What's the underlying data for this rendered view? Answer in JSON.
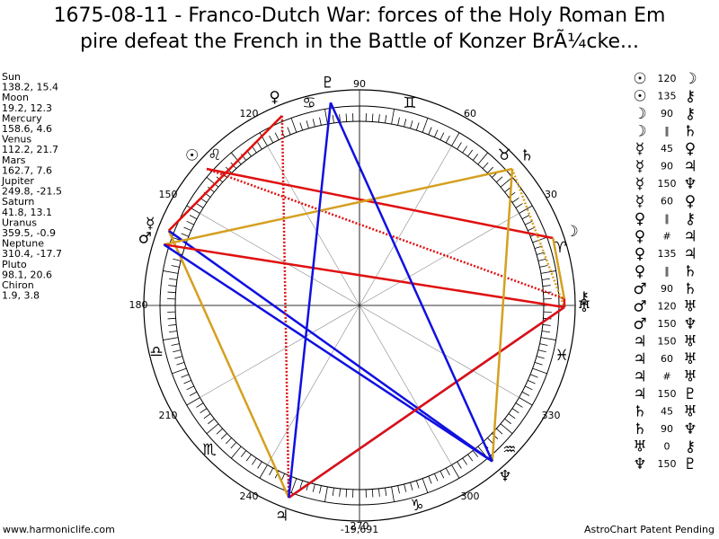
{
  "title": [
    "1675-08-11 - Franco-Dutch War: forces of the Holy Roman Em",
    "pire defeat the French in the Battle of Konzer BrÃ¼cke..."
  ],
  "planets": [
    {
      "name": "Sun",
      "position": "138.2, 15.4",
      "glyph": "☉"
    },
    {
      "name": "Moon",
      "position": "19.2, 12.3",
      "glyph": "☽"
    },
    {
      "name": "Mercury",
      "position": "158.6, 4.6",
      "glyph": "☿"
    },
    {
      "name": "Venus",
      "position": "112.2, 21.7",
      "glyph": "♀"
    },
    {
      "name": "Mars",
      "position": "162.7, 7.6",
      "glyph": "♂"
    },
    {
      "name": "Jupiter",
      "position": "249.8, -21.5",
      "glyph": "♃"
    },
    {
      "name": "Saturn",
      "position": "41.8, 13.1",
      "glyph": "♄"
    },
    {
      "name": "Uranus",
      "position": "359.5, -0.9",
      "glyph": "♅"
    },
    {
      "name": "Neptune",
      "position": "310.4, -17.7",
      "glyph": "♆"
    },
    {
      "name": "Pluto",
      "position": "98.1, 20.6",
      "glyph": "♇"
    },
    {
      "name": "Chiron",
      "position": "1.9, 3.8",
      "glyph": "⚷"
    }
  ],
  "aspects": [
    {
      "from": "☉",
      "aspect": "120",
      "to": "☽"
    },
    {
      "from": "☉",
      "aspect": "135",
      "to": "⚷"
    },
    {
      "from": "☽",
      "aspect": "90",
      "to": "⚷"
    },
    {
      "from": "☽",
      "aspect": "∥",
      "to": "♄"
    },
    {
      "from": "☿",
      "aspect": "45",
      "to": "♀"
    },
    {
      "from": "☿",
      "aspect": "90",
      "to": "♃"
    },
    {
      "from": "☿",
      "aspect": "150",
      "to": "♆"
    },
    {
      "from": "☿",
      "aspect": "60",
      "to": "♀"
    },
    {
      "from": "♀",
      "aspect": "∥",
      "to": "⚷"
    },
    {
      "from": "♀",
      "aspect": "#",
      "to": "♃"
    },
    {
      "from": "♀",
      "aspect": "135",
      "to": "♃"
    },
    {
      "from": "♀",
      "aspect": "∥",
      "to": "♄"
    },
    {
      "from": "♂",
      "aspect": "90",
      "to": "♄"
    },
    {
      "from": "♂",
      "aspect": "120",
      "to": "♅"
    },
    {
      "from": "♂",
      "aspect": "150",
      "to": "♆"
    },
    {
      "from": "♃",
      "aspect": "150",
      "to": "♅"
    },
    {
      "from": "♃",
      "aspect": "60",
      "to": "♅"
    },
    {
      "from": "♃",
      "aspect": "#",
      "to": "♅"
    },
    {
      "from": "♃",
      "aspect": "150",
      "to": "♇"
    },
    {
      "from": "♄",
      "aspect": "45",
      "to": "♅"
    },
    {
      "from": "♄",
      "aspect": "90",
      "to": "♆"
    },
    {
      "from": "♅",
      "aspect": "0",
      "to": "⚷"
    },
    {
      "from": "♆",
      "aspect": "150",
      "to": "♇"
    }
  ],
  "wheel": {
    "degree_labels": [
      30,
      60,
      90,
      120,
      150,
      180,
      210,
      240,
      270,
      300,
      330
    ],
    "signs": [
      "♈",
      "♉",
      "♊",
      "♋",
      "♌",
      "♎",
      "♏",
      "♑",
      "♒",
      "♓"
    ]
  },
  "footer": {
    "left": "www.harmoniclife.com",
    "center": "-19,691",
    "right": "AstroChart Patent Pending"
  }
}
